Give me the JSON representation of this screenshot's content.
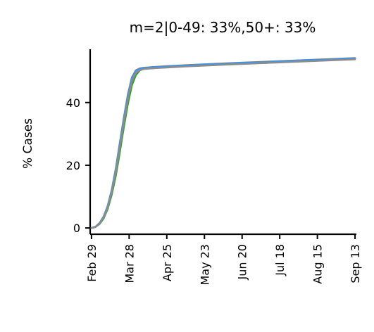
{
  "chart_data": {
    "type": "line",
    "title": "m=2|0-49: 33%,50+: 33%",
    "xlabel": "",
    "ylabel": "% Cases",
    "x_ticks": [
      "Feb 29",
      "Mar 28",
      "Apr 25",
      "May 23",
      "Jun 20",
      "Jul 18",
      "Aug 15",
      "Sep 13"
    ],
    "y_ticks": [
      0,
      20,
      40
    ],
    "xlim": [
      -1,
      197
    ],
    "ylim": [
      -2,
      57
    ],
    "grid": false,
    "legend": "none",
    "x": [
      0,
      3,
      6,
      9,
      12,
      15,
      18,
      21,
      24,
      27,
      30,
      33,
      36,
      39,
      42,
      45,
      48,
      56,
      70,
      100,
      140,
      196
    ],
    "series": [
      {
        "color": "#2ca02c",
        "values": [
          0,
          0.3,
          1.3,
          3.0,
          6.0,
          10.5,
          16.5,
          24,
          32,
          39.5,
          45.5,
          48.8,
          50.3,
          50.8,
          51.0,
          51.1,
          51.2,
          51.4,
          51.7,
          52.3,
          53.0,
          54.0
        ]
      },
      {
        "color": "#4a90d9",
        "values": [
          0,
          0.4,
          1.6,
          3.6,
          7.0,
          12.0,
          18.8,
          27,
          35,
          42.5,
          48.0,
          50.3,
          50.9,
          51.1,
          51.2,
          51.3,
          51.4,
          51.6,
          51.9,
          52.5,
          53.2,
          54.2
        ]
      },
      {
        "color": "#8c8c8c",
        "values": [
          0,
          0.3,
          1.4,
          3.2,
          6.4,
          11.2,
          17.6,
          25.5,
          33.5,
          41,
          46.8,
          49.5,
          50.4,
          50.7,
          50.8,
          50.9,
          51.0,
          51.2,
          51.5,
          52.1,
          52.8,
          53.8
        ]
      }
    ]
  }
}
